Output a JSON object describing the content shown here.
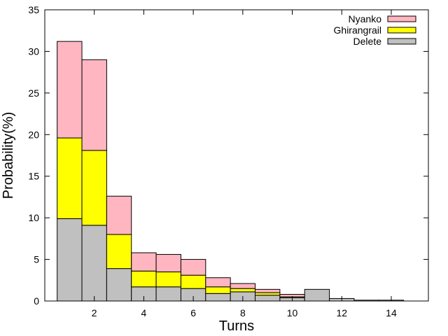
{
  "chart_data": {
    "type": "bar",
    "stacked": true,
    "xlabel": "Turns",
    "ylabel": "Probability(%)",
    "xlim": [
      0,
      15.5
    ],
    "ylim": [
      0,
      35
    ],
    "x_ticks": [
      2,
      4,
      6,
      8,
      10,
      12,
      14
    ],
    "y_ticks": [
      0,
      5,
      10,
      15,
      20,
      25,
      30,
      35
    ],
    "bar_width": 1,
    "x": [
      1,
      2,
      3,
      4,
      5,
      6,
      7,
      8,
      9,
      10,
      11,
      12,
      13,
      14
    ],
    "series": [
      {
        "name": "Delete",
        "color": "#c0c0c0",
        "values": [
          9.9,
          9.1,
          3.9,
          1.7,
          1.7,
          1.5,
          0.9,
          1.1,
          0.7,
          0.4,
          1.4,
          0.3,
          0.1,
          0.1
        ]
      },
      {
        "name": "Ghirangrail",
        "color": "#ffff00",
        "values": [
          9.7,
          9.0,
          4.1,
          1.9,
          1.8,
          1.6,
          0.8,
          0.4,
          0.3,
          0.1,
          0.0,
          0.0,
          0.0,
          0.0
        ]
      },
      {
        "name": "Nyanko",
        "color": "#ffb6c1",
        "values": [
          11.6,
          10.9,
          4.6,
          2.2,
          2.1,
          1.9,
          1.1,
          0.6,
          0.4,
          0.3,
          0.0,
          0.0,
          0.0,
          0.0
        ]
      }
    ],
    "legend": {
      "placement": "top-right",
      "order": [
        "Nyanko",
        "Ghirangrail",
        "Delete"
      ]
    },
    "grid": false
  }
}
